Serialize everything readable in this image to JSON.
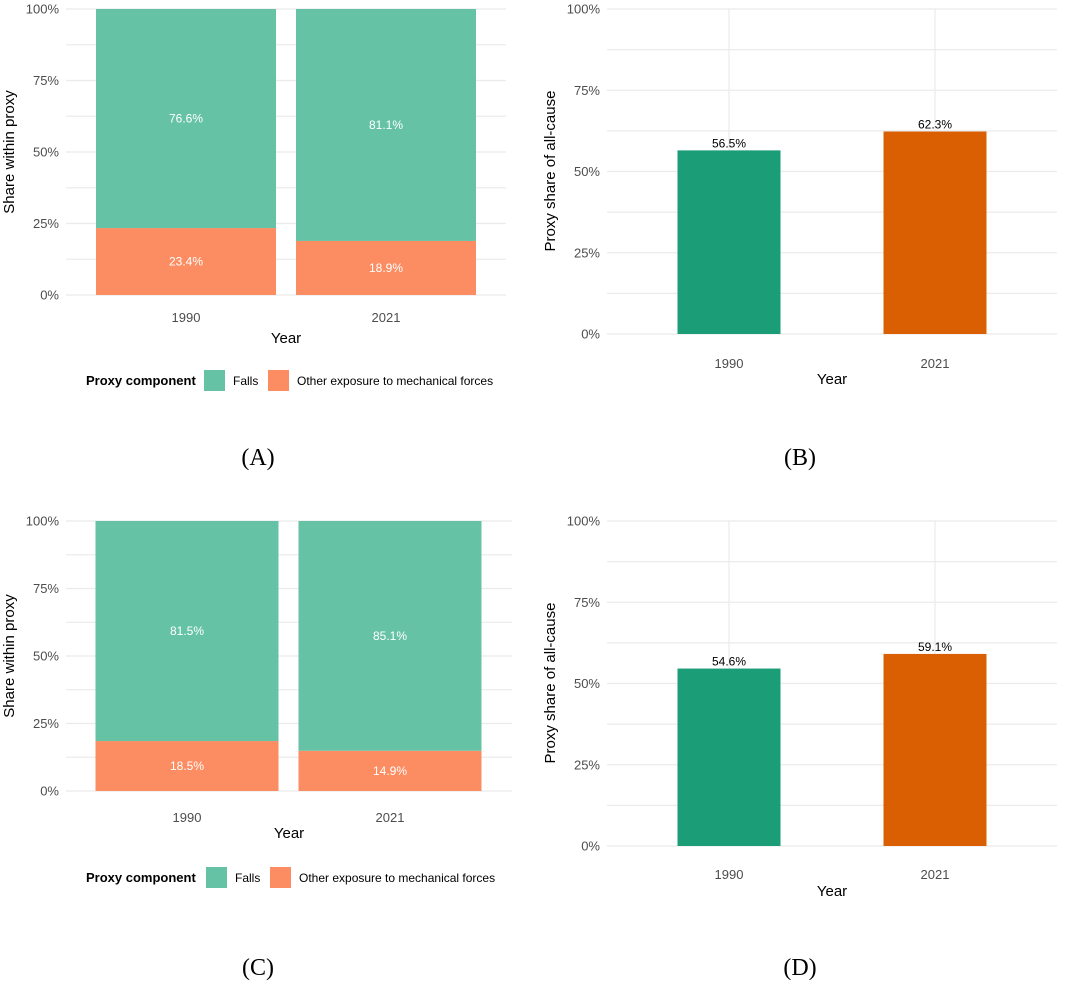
{
  "colors": {
    "falls": "#66c2a5",
    "other": "#fc8d62",
    "bar1990": "#1b9e77",
    "bar2021": "#d95f02"
  },
  "legend": {
    "title": "Proxy component",
    "items": [
      "Falls",
      "Other exposure to mechanical forces"
    ]
  },
  "y_ticks": [
    "0%",
    "25%",
    "50%",
    "75%",
    "100%"
  ],
  "chart_data": [
    {
      "panel": "(A)",
      "type": "bar",
      "stacked": true,
      "categories": [
        "1990",
        "2021"
      ],
      "series": [
        {
          "name": "Other exposure to mechanical forces",
          "values": [
            23.4,
            18.9
          ],
          "labels": [
            "23.4%",
            "18.9%"
          ]
        },
        {
          "name": "Falls",
          "values": [
            76.6,
            81.1
          ],
          "labels": [
            "76.6%",
            "81.1%"
          ]
        }
      ],
      "xlabel": "Year",
      "ylabel": "Share within proxy",
      "ylim": [
        0,
        100
      ],
      "legend": "bottom"
    },
    {
      "panel": "(B)",
      "type": "bar",
      "categories": [
        "1990",
        "2021"
      ],
      "values": [
        56.5,
        62.3
      ],
      "labels": [
        "56.5%",
        "62.3%"
      ],
      "xlabel": "Year",
      "ylabel": "Proxy share of all-cause",
      "ylim": [
        0,
        100
      ]
    },
    {
      "panel": "(C)",
      "type": "bar",
      "stacked": true,
      "categories": [
        "1990",
        "2021"
      ],
      "series": [
        {
          "name": "Other exposure to mechanical forces",
          "values": [
            18.5,
            14.9
          ],
          "labels": [
            "18.5%",
            "14.9%"
          ]
        },
        {
          "name": "Falls",
          "values": [
            81.5,
            85.1
          ],
          "labels": [
            "81.5%",
            "85.1%"
          ]
        }
      ],
      "xlabel": "Year",
      "ylabel": "Share within proxy",
      "ylim": [
        0,
        100
      ],
      "legend": "bottom"
    },
    {
      "panel": "(D)",
      "type": "bar",
      "categories": [
        "1990",
        "2021"
      ],
      "values": [
        54.6,
        59.1
      ],
      "labels": [
        "54.6%",
        "59.1%"
      ],
      "xlabel": "Year",
      "ylabel": "Proxy share of all-cause",
      "ylim": [
        0,
        100
      ]
    }
  ]
}
